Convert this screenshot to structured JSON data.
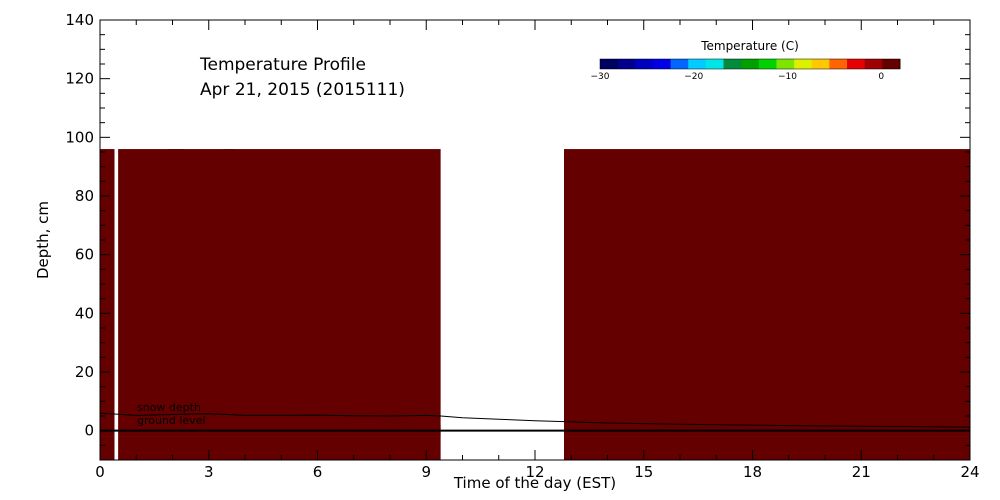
{
  "chart_data": {
    "type": "heatmap",
    "title": "Temperature Profile",
    "subtitle": "Apr 21, 2015 (2015111)",
    "xlabel": "Time of the day (EST)",
    "ylabel": "Depth, cm",
    "xlim": [
      0,
      24
    ],
    "ylim": [
      -10,
      140
    ],
    "x_ticks": [
      0,
      3,
      6,
      9,
      12,
      15,
      18,
      21,
      24
    ],
    "y_ticks": [
      0,
      20,
      40,
      60,
      80,
      100,
      120,
      140
    ],
    "grid": false,
    "colorbar": {
      "title": "Temperature (C)",
      "range": [
        -30,
        2
      ],
      "ticks": [
        -30,
        -20,
        -10,
        0
      ],
      "colors": [
        "#000060",
        "#00008c",
        "#0000c0",
        "#0000e6",
        "#0066ff",
        "#00ccff",
        "#00e6e6",
        "#008c3c",
        "#00a000",
        "#00d200",
        "#7de600",
        "#dcf000",
        "#ffc800",
        "#ff6400",
        "#e60000",
        "#a00000",
        "#640000"
      ],
      "placement": "top-right"
    },
    "data_gaps": [
      [
        0.4,
        0.5
      ],
      [
        9.4,
        12.8
      ]
    ],
    "regions": [
      {
        "x": [
          0,
          9.4
        ],
        "depth": [
          -2,
          96
        ],
        "temperature": 1.5
      },
      {
        "x": [
          12.8,
          24
        ],
        "depth": [
          -2,
          96
        ],
        "temperature": 1.5
      },
      {
        "x": [
          0,
          9.4
        ],
        "depth": [
          -10,
          -2
        ],
        "temperature": 0.8
      },
      {
        "x": [
          12.8,
          24
        ],
        "depth": [
          -10,
          -2
        ],
        "temperature": 0.8
      },
      {
        "x": [
          1.9,
          2.3
        ],
        "depth": [
          20,
          96
        ],
        "temperature": 1.1
      },
      {
        "x": [
          1.8,
          2.7
        ],
        "depth": [
          12,
          27
        ],
        "temperature": 1.1
      },
      {
        "x": [
          3.4,
          3.7
        ],
        "depth": [
          12,
          96
        ],
        "temperature": 1.1
      },
      {
        "x": [
          0,
          9.4
        ],
        "depth": [
          -2,
          2
        ],
        "temperature": 1.0
      },
      {
        "x": [
          12.8,
          24
        ],
        "depth": [
          -2,
          2
        ],
        "temperature": 1.0
      }
    ],
    "series": [
      {
        "name": "snow depth",
        "x": [
          0,
          1,
          2,
          3,
          4,
          5,
          6,
          7,
          8,
          9,
          9.4,
          10,
          11,
          12,
          12.8,
          14,
          16,
          18,
          20,
          22,
          24
        ],
        "y": [
          6,
          5.2,
          5.5,
          5.8,
          5.2,
          5.2,
          5.3,
          5.1,
          5.0,
          5.2,
          5.0,
          4.4,
          3.9,
          3.4,
          3.1,
          2.6,
          2.2,
          1.9,
          1.6,
          1.4,
          1.2
        ]
      },
      {
        "name": "ground level",
        "x": [
          0,
          24
        ],
        "y": [
          0,
          0
        ]
      }
    ],
    "annotations": [
      "snow depth",
      "ground level"
    ]
  }
}
